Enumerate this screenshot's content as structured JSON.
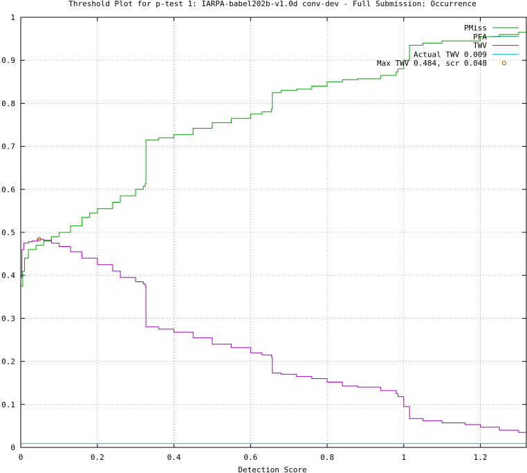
{
  "chart_data": {
    "type": "line",
    "title": "Threshold Plot for p-test 1: IARPA-babel202b-v1.0d conv-dev - Full Submission: Occurrence",
    "xlabel": "Detection Score",
    "ylabel": "",
    "xlim": [
      0,
      1.32
    ],
    "ylim": [
      0,
      1
    ],
    "grid": true,
    "legend_position": "top-right",
    "x_ticks": [
      "0",
      "0.2",
      "0.4",
      "0.6",
      "0.8",
      "1",
      "1.2"
    ],
    "y_ticks": [
      "0",
      "0.1",
      "0.2",
      "0.3",
      "0.4",
      "0.5",
      "0.6",
      "0.7",
      "0.8",
      "0.9",
      "1"
    ],
    "series": [
      {
        "name": "PMiss",
        "color": "#00a000",
        "points": [
          [
            0.0,
            0.375
          ],
          [
            0.005,
            0.41
          ],
          [
            0.01,
            0.44
          ],
          [
            0.02,
            0.46
          ],
          [
            0.04,
            0.47
          ],
          [
            0.06,
            0.48
          ],
          [
            0.08,
            0.49
          ],
          [
            0.1,
            0.5
          ],
          [
            0.13,
            0.515
          ],
          [
            0.16,
            0.535
          ],
          [
            0.18,
            0.545
          ],
          [
            0.2,
            0.555
          ],
          [
            0.24,
            0.57
          ],
          [
            0.26,
            0.585
          ],
          [
            0.3,
            0.6
          ],
          [
            0.32,
            0.607
          ],
          [
            0.325,
            0.613
          ],
          [
            0.327,
            0.715
          ],
          [
            0.36,
            0.72
          ],
          [
            0.4,
            0.727
          ],
          [
            0.45,
            0.742
          ],
          [
            0.5,
            0.755
          ],
          [
            0.55,
            0.765
          ],
          [
            0.6,
            0.775
          ],
          [
            0.63,
            0.78
          ],
          [
            0.655,
            0.787
          ],
          [
            0.657,
            0.825
          ],
          [
            0.68,
            0.83
          ],
          [
            0.72,
            0.833
          ],
          [
            0.76,
            0.84
          ],
          [
            0.8,
            0.85
          ],
          [
            0.84,
            0.855
          ],
          [
            0.88,
            0.857
          ],
          [
            0.94,
            0.865
          ],
          [
            0.98,
            0.873
          ],
          [
            0.985,
            0.88
          ],
          [
            1.0,
            0.9
          ],
          [
            1.015,
            0.935
          ],
          [
            1.05,
            0.94
          ],
          [
            1.1,
            0.945
          ],
          [
            1.2,
            0.955
          ],
          [
            1.25,
            0.96
          ],
          [
            1.3,
            0.965
          ],
          [
            1.32,
            0.985
          ]
        ]
      },
      {
        "name": "PFA",
        "color": "#008060",
        "points": []
      },
      {
        "name": "TWV",
        "color": "#a000c0",
        "points": [
          [
            0.0,
            0.395
          ],
          [
            0.003,
            0.46
          ],
          [
            0.008,
            0.475
          ],
          [
            0.02,
            0.478
          ],
          [
            0.03,
            0.48
          ],
          [
            0.045,
            0.484
          ],
          [
            0.06,
            0.482
          ],
          [
            0.08,
            0.475
          ],
          [
            0.1,
            0.467
          ],
          [
            0.13,
            0.455
          ],
          [
            0.16,
            0.44
          ],
          [
            0.2,
            0.425
          ],
          [
            0.24,
            0.41
          ],
          [
            0.26,
            0.395
          ],
          [
            0.3,
            0.385
          ],
          [
            0.32,
            0.38
          ],
          [
            0.325,
            0.375
          ],
          [
            0.327,
            0.28
          ],
          [
            0.36,
            0.275
          ],
          [
            0.4,
            0.268
          ],
          [
            0.45,
            0.255
          ],
          [
            0.5,
            0.24
          ],
          [
            0.55,
            0.232
          ],
          [
            0.6,
            0.22
          ],
          [
            0.63,
            0.215
          ],
          [
            0.655,
            0.21
          ],
          [
            0.657,
            0.173
          ],
          [
            0.68,
            0.17
          ],
          [
            0.72,
            0.165
          ],
          [
            0.76,
            0.16
          ],
          [
            0.8,
            0.152
          ],
          [
            0.84,
            0.143
          ],
          [
            0.88,
            0.14
          ],
          [
            0.94,
            0.132
          ],
          [
            0.98,
            0.125
          ],
          [
            0.985,
            0.118
          ],
          [
            1.0,
            0.095
          ],
          [
            1.015,
            0.067
          ],
          [
            1.05,
            0.062
          ],
          [
            1.1,
            0.057
          ],
          [
            1.16,
            0.053
          ],
          [
            1.2,
            0.047
          ],
          [
            1.25,
            0.04
          ],
          [
            1.3,
            0.035
          ],
          [
            1.32,
            0.018
          ]
        ]
      },
      {
        "name": "Actual TWV 0.009",
        "color": "#00c0c0",
        "points": [
          [
            0.0,
            0.009
          ],
          [
            1.32,
            0.009
          ]
        ]
      },
      {
        "name": "Max TWV 0.484, scr 0.048",
        "color": "#c06000",
        "marker": "circle",
        "points": [
          [
            0.048,
            0.484
          ]
        ]
      }
    ]
  }
}
